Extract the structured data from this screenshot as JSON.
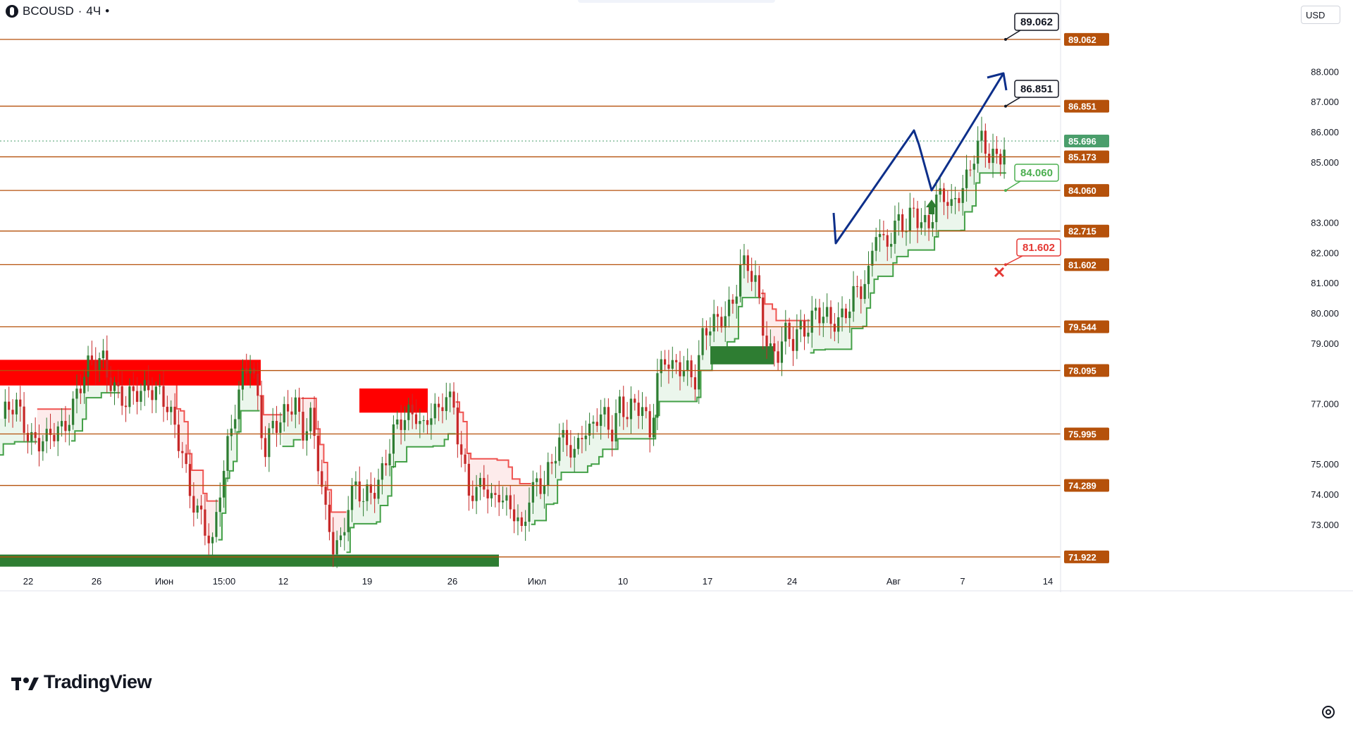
{
  "header": {
    "symbol": "BCOUSD",
    "separator": "·",
    "timeframe": "4Ч",
    "dot": "•"
  },
  "currency": "USD",
  "watermark": "TradingView",
  "colors": {
    "level": "#b5510b",
    "up": "#2e7d32",
    "down": "#c62828",
    "band_green": "#43a047",
    "band_red": "#ef5350",
    "zone_red": "#ff0000",
    "zone_green": "#2e7d32",
    "arrow_blue": "#0d2f8a",
    "callout_green": "#4caf50",
    "callout_red": "#e53935",
    "price_green": "#4a9e6b"
  },
  "chart_data": {
    "type": "candlestick",
    "y_axis_ticks": [
      "88.000",
      "87.000",
      "86.000",
      "85.000",
      "83.000",
      "82.000",
      "81.000",
      "80.000",
      "79.000",
      "77.000",
      "75.000",
      "74.000",
      "73.000"
    ],
    "x_axis_ticks": [
      "22",
      "26",
      "Июн",
      "15:00",
      "12",
      "19",
      "26",
      "Июл",
      "10",
      "17",
      "24",
      "Авг",
      "7",
      "14"
    ],
    "levels": [
      {
        "value": 89.062,
        "label": "89.062"
      },
      {
        "value": 86.851,
        "label": "86.851"
      },
      {
        "value": 85.173,
        "label": "85.173"
      },
      {
        "value": 84.06,
        "label": "84.060"
      },
      {
        "value": 82.715,
        "label": "82.715"
      },
      {
        "value": 81.602,
        "label": "81.602"
      },
      {
        "value": 79.544,
        "label": "79.544"
      },
      {
        "value": 78.095,
        "label": "78.095"
      },
      {
        "value": 75.995,
        "label": "75.995"
      },
      {
        "value": 74.289,
        "label": "74.289"
      },
      {
        "value": 71.922,
        "label": "71.922"
      }
    ],
    "last_price": {
      "value": 85.696,
      "label": "85.696"
    },
    "callouts": [
      {
        "value": 89.062,
        "label": "89.062",
        "style": "black"
      },
      {
        "value": 86.851,
        "label": "86.851",
        "style": "black"
      },
      {
        "value": 84.06,
        "label": "84.060",
        "style": "green"
      },
      {
        "value": 81.602,
        "label": "81.602",
        "style": "red"
      }
    ],
    "ylim": [
      71.5,
      89.9
    ],
    "anchors": [
      [
        0,
        76.5
      ],
      [
        4,
        76.8
      ],
      [
        8,
        76.0
      ],
      [
        12,
        75.6
      ],
      [
        16,
        76.2
      ],
      [
        20,
        77.4
      ],
      [
        24,
        78.2
      ],
      [
        27,
        78.6
      ],
      [
        30,
        77.6
      ],
      [
        33,
        76.8
      ],
      [
        36,
        77.4
      ],
      [
        39,
        77.8
      ],
      [
        42,
        77.2
      ],
      [
        45,
        76.4
      ],
      [
        48,
        75.6
      ],
      [
        50,
        74.2
      ],
      [
        52,
        73.4
      ],
      [
        54,
        72.6
      ],
      [
        56,
        72.2
      ],
      [
        58,
        74.4
      ],
      [
        60,
        75.8
      ],
      [
        62,
        76.8
      ],
      [
        64,
        77.6
      ],
      [
        66,
        78.3
      ],
      [
        68,
        77.2
      ],
      [
        70,
        75.6
      ],
      [
        72,
        76.4
      ],
      [
        74,
        76.1
      ],
      [
        76,
        76.7
      ],
      [
        78,
        77.1
      ],
      [
        80,
        76.3
      ],
      [
        82,
        76.6
      ],
      [
        84,
        74.9
      ],
      [
        86,
        73.1
      ],
      [
        88,
        72.4
      ],
      [
        90,
        72.6
      ],
      [
        92,
        73.8
      ],
      [
        94,
        74.1
      ],
      [
        96,
        73.6
      ],
      [
        98,
        74.1
      ],
      [
        100,
        74.6
      ],
      [
        102,
        75.3
      ],
      [
        104,
        75.9
      ],
      [
        106,
        76.2
      ],
      [
        108,
        76.6
      ],
      [
        110,
        76.9
      ],
      [
        112,
        76.3
      ],
      [
        114,
        76.7
      ],
      [
        116,
        76.4
      ],
      [
        118,
        77.3
      ],
      [
        120,
        77.0
      ],
      [
        122,
        75.5
      ],
      [
        124,
        74.0
      ],
      [
        126,
        73.8
      ],
      [
        128,
        74.3
      ],
      [
        130,
        73.9
      ],
      [
        132,
        74.3
      ],
      [
        134,
        73.6
      ],
      [
        136,
        73.2
      ],
      [
        138,
        72.5
      ],
      [
        140,
        74.1
      ],
      [
        142,
        74.6
      ],
      [
        144,
        74.4
      ],
      [
        146,
        74.8
      ],
      [
        148,
        75.6
      ],
      [
        150,
        75.9
      ],
      [
        152,
        75.5
      ],
      [
        154,
        76.2
      ],
      [
        156,
        75.8
      ],
      [
        158,
        76.4
      ],
      [
        160,
        76.6
      ],
      [
        162,
        76.3
      ],
      [
        164,
        77.1
      ],
      [
        166,
        76.5
      ],
      [
        168,
        76.7
      ],
      [
        170,
        76.9
      ],
      [
        172,
        76.2
      ],
      [
        174,
        78.0
      ],
      [
        176,
        78.4
      ],
      [
        178,
        77.9
      ],
      [
        180,
        78.2
      ],
      [
        182,
        78.3
      ],
      [
        184,
        78.0
      ],
      [
        186,
        79.1
      ],
      [
        188,
        79.4
      ],
      [
        190,
        79.6
      ],
      [
        192,
        80.2
      ],
      [
        194,
        80.5
      ],
      [
        196,
        81.5
      ],
      [
        198,
        81.3
      ],
      [
        200,
        80.9
      ],
      [
        202,
        79.7
      ],
      [
        204,
        78.9
      ],
      [
        206,
        78.7
      ],
      [
        208,
        79.1
      ],
      [
        210,
        78.9
      ],
      [
        212,
        79.6
      ],
      [
        214,
        79.8
      ],
      [
        216,
        80.1
      ],
      [
        218,
        79.7
      ],
      [
        220,
        79.5
      ],
      [
        222,
        79.8
      ],
      [
        224,
        80.3
      ],
      [
        226,
        80.7
      ],
      [
        228,
        80.6
      ],
      [
        230,
        81.0
      ],
      [
        232,
        82.9
      ],
      [
        234,
        82.5
      ],
      [
        236,
        82.7
      ],
      [
        238,
        82.9
      ],
      [
        240,
        82.6
      ],
      [
        242,
        83.4
      ],
      [
        244,
        83.2
      ],
      [
        246,
        83.1
      ],
      [
        248,
        83.6
      ],
      [
        250,
        83.7
      ],
      [
        252,
        83.4
      ],
      [
        254,
        84.2
      ],
      [
        256,
        84.6
      ],
      [
        258,
        85.2
      ],
      [
        260,
        85.5
      ],
      [
        262,
        85.1
      ],
      [
        264,
        85.3
      ],
      [
        266,
        85.7
      ]
    ]
  }
}
